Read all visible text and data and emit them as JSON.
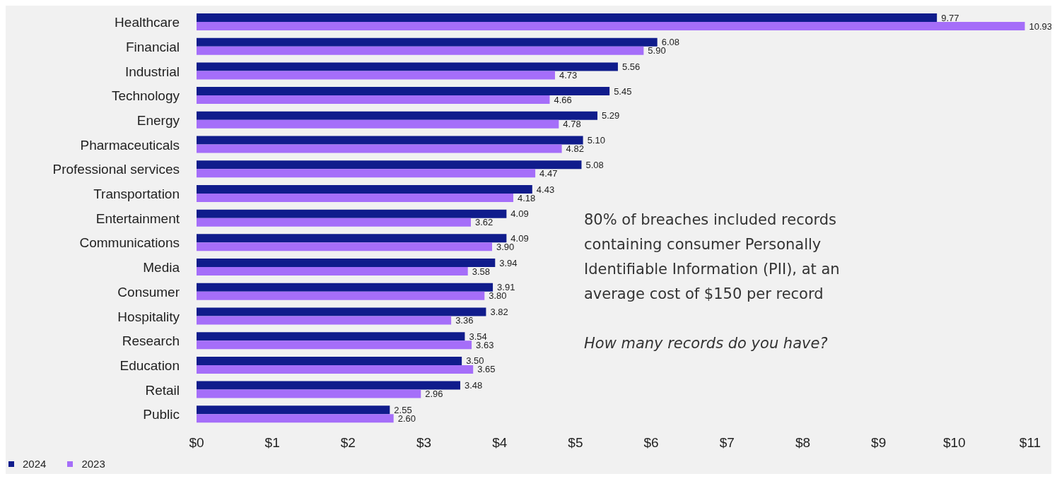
{
  "chart_data": {
    "type": "bar",
    "orientation": "horizontal",
    "categories": [
      "Healthcare",
      "Financial",
      "Industrial",
      "Technology",
      "Energy",
      "Pharmaceuticals",
      "Professional services",
      "Transportation",
      "Entertainment",
      "Communications",
      "Media",
      "Consumer",
      "Hospitality",
      "Research",
      "Education",
      "Retail",
      "Public"
    ],
    "series": [
      {
        "name": "2024",
        "color": "#101c8c",
        "values": [
          9.77,
          6.08,
          5.56,
          5.45,
          5.29,
          5.1,
          5.08,
          4.43,
          4.09,
          4.09,
          3.94,
          3.91,
          3.82,
          3.54,
          3.5,
          3.48,
          2.55
        ],
        "value_labels": [
          "9.77",
          "6.08",
          "5.56",
          "5.45",
          "5.29",
          "5.10",
          "5.08",
          "4.43",
          "4.09",
          "4.09",
          "3.94",
          "3.91",
          "3.82",
          "3.54",
          "3.50",
          "3.48",
          "2.55"
        ]
      },
      {
        "name": "2023",
        "color": "#a56ef9",
        "values": [
          10.93,
          5.9,
          4.73,
          4.66,
          4.78,
          4.82,
          4.47,
          4.18,
          3.62,
          3.9,
          3.58,
          3.8,
          3.36,
          3.63,
          3.65,
          2.96,
          2.6
        ],
        "value_labels": [
          "10.93",
          "5.90",
          "4.73",
          "4.66",
          "4.78",
          "4.82",
          "4.47",
          "4.18",
          "3.62",
          "3.90",
          "3.58",
          "3.80",
          "3.36",
          "3.63",
          "3.65",
          "2.96",
          "2.60"
        ]
      }
    ],
    "xlim": [
      0,
      11
    ],
    "xticks": [
      {
        "value": 0,
        "label": "$0"
      },
      {
        "value": 1,
        "label": "$1"
      },
      {
        "value": 2,
        "label": "$2"
      },
      {
        "value": 3,
        "label": "$3"
      },
      {
        "value": 4,
        "label": "$4"
      },
      {
        "value": 5,
        "label": "$5"
      },
      {
        "value": 6,
        "label": "$6"
      },
      {
        "value": 7,
        "label": "$7"
      },
      {
        "value": 8,
        "label": "$8"
      },
      {
        "value": 9,
        "label": "$9"
      },
      {
        "value": 10,
        "label": "$10"
      },
      {
        "value": 11,
        "label": "$11"
      }
    ],
    "grid": false,
    "legend": "bottom left",
    "annotations": [
      "80% of breaches included records containing consumer Personally Identifiable Information (PII), at an average cost of $150 per record",
      "How many records do you have?"
    ]
  }
}
